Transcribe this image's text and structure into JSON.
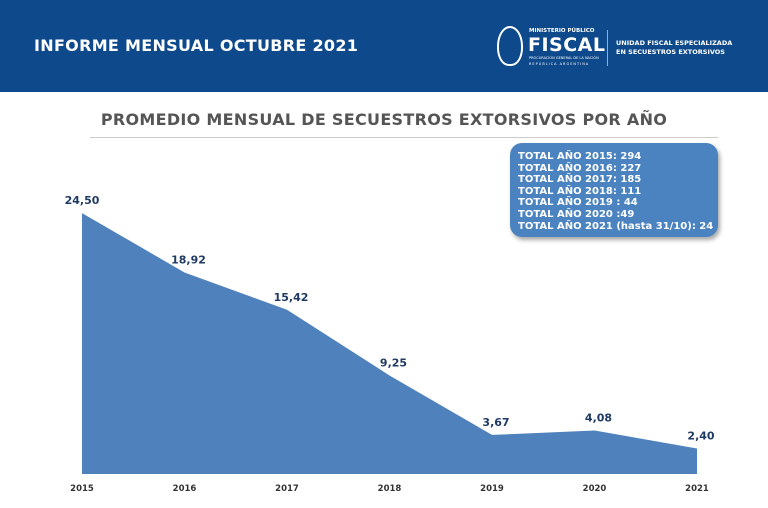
{
  "header": {
    "title": "INFORME MENSUAL OCTUBRE 2021",
    "logo": {
      "line1": "MINISTERIO PÚBLICO",
      "line2": "FISCAL",
      "line3": "PROCURACIÓN GENERAL DE LA NACIÓN",
      "line4": "REPÚBLICA ARGENTINA"
    },
    "unit": [
      "UNIDAD FISCAL ESPECIALIZADA",
      "EN SECUESTROS EXTORSIVOS"
    ]
  },
  "chart_data": {
    "type": "area",
    "title": "PROMEDIO MENSUAL DE SECUESTROS EXTORSIVOS POR AÑO",
    "categories": [
      "2015",
      "2016",
      "2017",
      "2018",
      "2019",
      "2020",
      "2021"
    ],
    "values": [
      24.5,
      18.92,
      15.42,
      9.25,
      3.67,
      4.08,
      2.4
    ],
    "data_labels": [
      "24,50",
      "18,92",
      "15,42",
      "9,25",
      "3,67",
      "4,08",
      "2,40"
    ],
    "ylim": [
      0,
      25
    ],
    "grid": false,
    "color": "#4f81bd",
    "annotation": [
      "TOTAL AÑO 2015: 294",
      "TOTAL AÑO 2016: 227",
      "TOTAL AÑO 2017: 185",
      "TOTAL AÑO 2018: 111",
      "TOTAL AÑO 2019 : 44",
      "TOTAL AÑO 2020 :49",
      "TOTAL AÑO 2021 (hasta 31/10): 24"
    ]
  }
}
